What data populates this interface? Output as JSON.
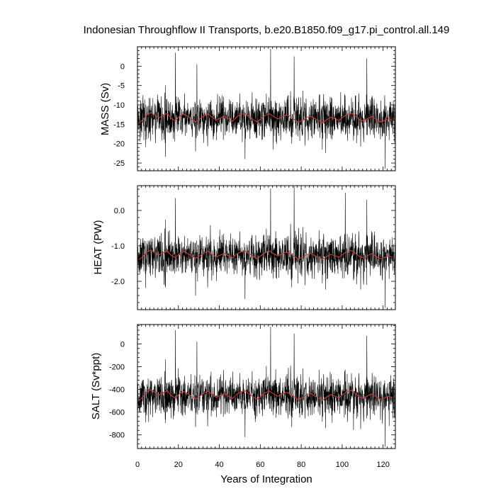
{
  "title": "Indonesian Throughflow II Transports, b.e20.B1850.f09_g17.pi_control.all.149",
  "xlabel": "Years of Integration",
  "colors": {
    "raw": "#000000",
    "smooth": "#d43b3b",
    "axis": "#000000",
    "background": "#ffffff"
  },
  "chart_data": [
    {
      "type": "line",
      "panel": "mass",
      "ylabel": "MASS (Sv)",
      "xlim": [
        0,
        126
      ],
      "ylim": [
        -27,
        5
      ],
      "xticks": [
        0,
        20,
        40,
        60,
        80,
        100,
        120
      ],
      "yticks": [
        0,
        -5,
        -10,
        -15,
        -20,
        -25
      ],
      "ytick_labels": [
        "0",
        "-5",
        "-10",
        "-15",
        "-20",
        "-25"
      ],
      "legend": "none",
      "grid": false,
      "series": [
        {
          "style": "monthly",
          "color": "#000000",
          "mean": -13.5,
          "std": 3.0,
          "lo": -26.5,
          "hi": 4.5,
          "spikes": [
            [
              65.0,
              4.5
            ],
            [
              18.5,
              3.5
            ],
            [
              112.0,
              2.0
            ],
            [
              121.0,
              -26.5
            ],
            [
              52.5,
              -24.0
            ],
            [
              29.0,
              0.5
            ],
            [
              76.5,
              2.5
            ]
          ]
        },
        {
          "style": "annual",
          "color": "#d43b3b",
          "x": [
            0.5,
            2.5,
            4.5,
            6.5,
            8.5,
            10.5,
            12.5,
            14.5,
            16.5,
            18.5,
            20.5,
            22.5,
            24.5,
            26.5,
            28.5,
            30.5,
            32.5,
            34.5,
            36.5,
            38.5,
            40.5,
            42.5,
            44.5,
            46.5,
            48.5,
            50.5,
            52.5,
            54.5,
            56.5,
            58.5,
            60.5,
            62.5,
            64.5,
            66.5,
            68.5,
            70.5,
            72.5,
            74.5,
            76.5,
            78.5,
            80.5,
            82.5,
            84.5,
            86.5,
            88.5,
            90.5,
            92.5,
            94.5,
            96.5,
            98.5,
            100.5,
            102.5,
            104.5,
            106.5,
            108.5,
            110.5,
            112.5,
            114.5,
            116.5,
            118.5,
            120.5,
            122.5,
            124.5
          ],
          "y": [
            -14.8,
            -13.9,
            -12.6,
            -12.0,
            -12.6,
            -13.3,
            -12.8,
            -12.2,
            -13.5,
            -14.1,
            -13.0,
            -12.4,
            -12.9,
            -13.7,
            -14.3,
            -13.6,
            -12.8,
            -12.3,
            -13.2,
            -13.9,
            -13.4,
            -12.9,
            -13.6,
            -14.2,
            -13.1,
            -12.5,
            -12.2,
            -13.0,
            -13.8,
            -14.4,
            -13.5,
            -12.7,
            -12.3,
            -13.0,
            -13.6,
            -13.2,
            -12.6,
            -12.9,
            -13.7,
            -14.5,
            -14.0,
            -13.3,
            -12.9,
            -13.5,
            -14.1,
            -14.6,
            -13.8,
            -13.2,
            -13.6,
            -14.0,
            -13.1,
            -12.4,
            -12.1,
            -12.9,
            -13.8,
            -14.2,
            -13.5,
            -13.0,
            -13.7,
            -14.4,
            -14.1,
            -13.6,
            -14.0
          ]
        }
      ]
    },
    {
      "type": "line",
      "panel": "heat",
      "ylabel": "HEAT (PW)",
      "xlim": [
        0,
        126
      ],
      "ylim": [
        -2.8,
        0.7
      ],
      "xticks": [
        0,
        20,
        40,
        60,
        80,
        100,
        120
      ],
      "yticks": [
        0.0,
        -1.0,
        -2.0
      ],
      "ytick_labels": [
        "0.0",
        "-1.0",
        "-2.0"
      ],
      "legend": "none",
      "grid": false,
      "series": [
        {
          "style": "monthly",
          "color": "#000000",
          "mean": -1.28,
          "std": 0.33,
          "lo": -2.75,
          "hi": 0.68,
          "spikes": [
            [
              65.0,
              0.62
            ],
            [
              76.5,
              0.68
            ],
            [
              18.5,
              0.35
            ],
            [
              112.0,
              0.3
            ],
            [
              121.0,
              -2.75
            ],
            [
              52.5,
              -2.5
            ],
            [
              101.5,
              0.5
            ]
          ]
        },
        {
          "style": "annual",
          "color": "#d43b3b",
          "x": [
            0.5,
            2.5,
            4.5,
            6.5,
            8.5,
            10.5,
            12.5,
            14.5,
            16.5,
            18.5,
            20.5,
            22.5,
            24.5,
            26.5,
            28.5,
            30.5,
            32.5,
            34.5,
            36.5,
            38.5,
            40.5,
            42.5,
            44.5,
            46.5,
            48.5,
            50.5,
            52.5,
            54.5,
            56.5,
            58.5,
            60.5,
            62.5,
            64.5,
            66.5,
            68.5,
            70.5,
            72.5,
            74.5,
            76.5,
            78.5,
            80.5,
            82.5,
            84.5,
            86.5,
            88.5,
            90.5,
            92.5,
            94.5,
            96.5,
            98.5,
            100.5,
            102.5,
            104.5,
            106.5,
            108.5,
            110.5,
            112.5,
            114.5,
            116.5,
            118.5,
            120.5,
            122.5,
            124.5
          ],
          "y": [
            -1.4,
            -1.31,
            -1.18,
            -1.12,
            -1.18,
            -1.25,
            -1.2,
            -1.14,
            -1.27,
            -1.33,
            -1.22,
            -1.16,
            -1.21,
            -1.29,
            -1.35,
            -1.28,
            -1.2,
            -1.15,
            -1.24,
            -1.31,
            -1.26,
            -1.21,
            -1.28,
            -1.34,
            -1.23,
            -1.17,
            -1.14,
            -1.22,
            -1.3,
            -1.36,
            -1.27,
            -1.19,
            -1.15,
            -1.22,
            -1.28,
            -1.24,
            -1.18,
            -1.21,
            -1.29,
            -1.37,
            -1.32,
            -1.25,
            -1.21,
            -1.27,
            -1.33,
            -1.38,
            -1.3,
            -1.24,
            -1.28,
            -1.32,
            -1.23,
            -1.16,
            -1.13,
            -1.21,
            -1.3,
            -1.34,
            -1.27,
            -1.22,
            -1.29,
            -1.36,
            -1.33,
            -1.28,
            -1.32
          ]
        }
      ]
    },
    {
      "type": "line",
      "panel": "salt",
      "ylabel": "SALT (Sv*ppt)",
      "xlim": [
        0,
        126
      ],
      "ylim": [
        -920,
        170
      ],
      "xticks": [
        0,
        20,
        40,
        60,
        80,
        100,
        120
      ],
      "xtick_labels": [
        "0",
        "20",
        "40",
        "60",
        "80",
        "100",
        "120"
      ],
      "yticks": [
        0,
        -200,
        -400,
        -600,
        -800
      ],
      "ytick_labels": [
        "0",
        "-200",
        "-400",
        "-600",
        "-800"
      ],
      "legend": "none",
      "grid": false,
      "series": [
        {
          "style": "monthly",
          "color": "#000000",
          "mean": -460,
          "std": 100,
          "lo": -905,
          "hi": 150,
          "spikes": [
            [
              65.0,
              150
            ],
            [
              18.5,
              120
            ],
            [
              112.0,
              70
            ],
            [
              121.0,
              -905
            ],
            [
              52.5,
              -820
            ],
            [
              29.0,
              20
            ],
            [
              76.5,
              90
            ]
          ]
        },
        {
          "style": "annual",
          "color": "#d43b3b",
          "x": [
            0.5,
            2.5,
            4.5,
            6.5,
            8.5,
            10.5,
            12.5,
            14.5,
            16.5,
            18.5,
            20.5,
            22.5,
            24.5,
            26.5,
            28.5,
            30.5,
            32.5,
            34.5,
            36.5,
            38.5,
            40.5,
            42.5,
            44.5,
            46.5,
            48.5,
            50.5,
            52.5,
            54.5,
            56.5,
            58.5,
            60.5,
            62.5,
            64.5,
            66.5,
            68.5,
            70.5,
            72.5,
            74.5,
            76.5,
            78.5,
            80.5,
            82.5,
            84.5,
            86.5,
            88.5,
            90.5,
            92.5,
            94.5,
            96.5,
            98.5,
            100.5,
            102.5,
            104.5,
            106.5,
            108.5,
            110.5,
            112.5,
            114.5,
            116.5,
            118.5,
            120.5,
            122.5,
            124.5
          ],
          "y": [
            -500,
            -470,
            -425,
            -405,
            -425,
            -450,
            -432,
            -412,
            -456,
            -476,
            -440,
            -418,
            -436,
            -463,
            -483,
            -460,
            -432,
            -415,
            -446,
            -470,
            -453,
            -436,
            -460,
            -480,
            -443,
            -422,
            -412,
            -440,
            -466,
            -487,
            -456,
            -429,
            -415,
            -440,
            -460,
            -446,
            -426,
            -436,
            -463,
            -490,
            -473,
            -450,
            -436,
            -456,
            -476,
            -493,
            -466,
            -446,
            -460,
            -473,
            -443,
            -419,
            -409,
            -436,
            -466,
            -480,
            -456,
            -440,
            -463,
            -487,
            -476,
            -460,
            -473
          ]
        }
      ]
    }
  ]
}
